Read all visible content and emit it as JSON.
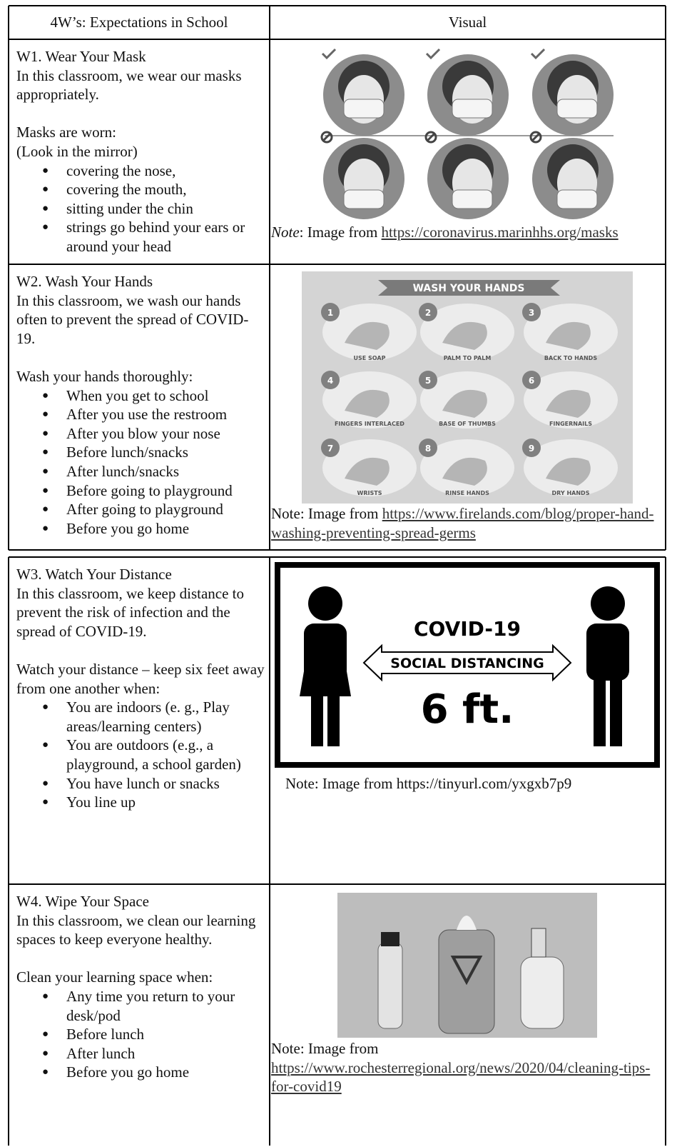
{
  "table": {
    "header": [
      "4W’s: Expectations in School",
      "Visual"
    ],
    "rows": [
      {
        "title": "W1. Wear Your Mask",
        "intro": "In this classroom, we wear our masks appropriately.",
        "lead": [
          "Masks are worn:",
          "(Look in the mirror)"
        ],
        "bullets": [
          "covering the nose,",
          "covering the mouth,",
          "sitting under the chin",
          "strings go behind your ears or around your head"
        ],
        "visual": {
          "kind": "masks"
        },
        "note": [
          {
            "text": "Note",
            "style": "italic"
          },
          {
            "text": ": Image from "
          },
          {
            "text": "https://coronavirus.marinhhs.org/masks",
            "style": "link"
          }
        ]
      },
      {
        "title": "W2. Wash Your Hands",
        "intro": "In this classroom, we wash our hands often to prevent the spread of COVID-19.",
        "lead": [
          "Wash your hands thoroughly:"
        ],
        "bullets": [
          "When you get to school",
          "After you use the restroom",
          "After you blow your nose",
          "Before lunch/snacks",
          "After lunch/snacks",
          "Before going to playground",
          "After going to playground",
          "Before you go home"
        ],
        "visual": {
          "kind": "handwash",
          "banner": "WASH YOUR HANDS",
          "steps": [
            {
              "number": "1",
              "label": "USE SOAP"
            },
            {
              "number": "2",
              "label": "PALM TO PALM"
            },
            {
              "number": "3",
              "label": "BACK TO HANDS"
            },
            {
              "number": "4",
              "label": "FINGERS INTERLACED"
            },
            {
              "number": "5",
              "label": "BASE OF THUMBS"
            },
            {
              "number": "6",
              "label": "FINGERNAILS"
            },
            {
              "number": "7",
              "label": "WRISTS"
            },
            {
              "number": "8",
              "label": "RINSE HANDS"
            },
            {
              "number": "9",
              "label": "DRY HANDS"
            }
          ]
        },
        "note": [
          {
            "text": "Note: Image from "
          },
          {
            "text": "https://www.firelands.com/blog/proper-hand-washing-preventing-spread-germs",
            "style": "link"
          }
        ]
      },
      {
        "title": "W3. Watch Your Distance",
        "intro": "In this classroom, we keep distance to prevent the risk of infection and the spread of COVID-19.",
        "lead": [
          "Watch your distance – keep six feet away from one another when:"
        ],
        "bullets": [
          "You are indoors (e. g., Play areas/learning centers)",
          "You are outdoors (e.g., a playground, a school garden)",
          "You have lunch or snacks",
          "You line up"
        ],
        "visual": {
          "kind": "distance",
          "heading": "COVID-19",
          "arrow": "SOCIAL DISTANCING",
          "distance": "6 ft."
        },
        "note": [
          {
            "text": "Note: Image from https://tinyurl.com/yxgxb7p9"
          }
        ]
      },
      {
        "title": "W4. Wipe Your Space",
        "intro": "In this classroom, we clean our learning spaces to keep everyone healthy.",
        "lead": [
          "Clean your learning space when:"
        ],
        "bullets": [
          "Any time you return to your desk/pod",
          "Before lunch",
          "After lunch",
          "Before you go home"
        ],
        "visual": {
          "kind": "cleaning"
        },
        "note": [
          {
            "text": "Note: Image from "
          },
          {
            "text": "https://www.rochesterregional.org/news/2020/04/cleaning-tips-for-covid19",
            "style": "link"
          }
        ]
      }
    ]
  }
}
